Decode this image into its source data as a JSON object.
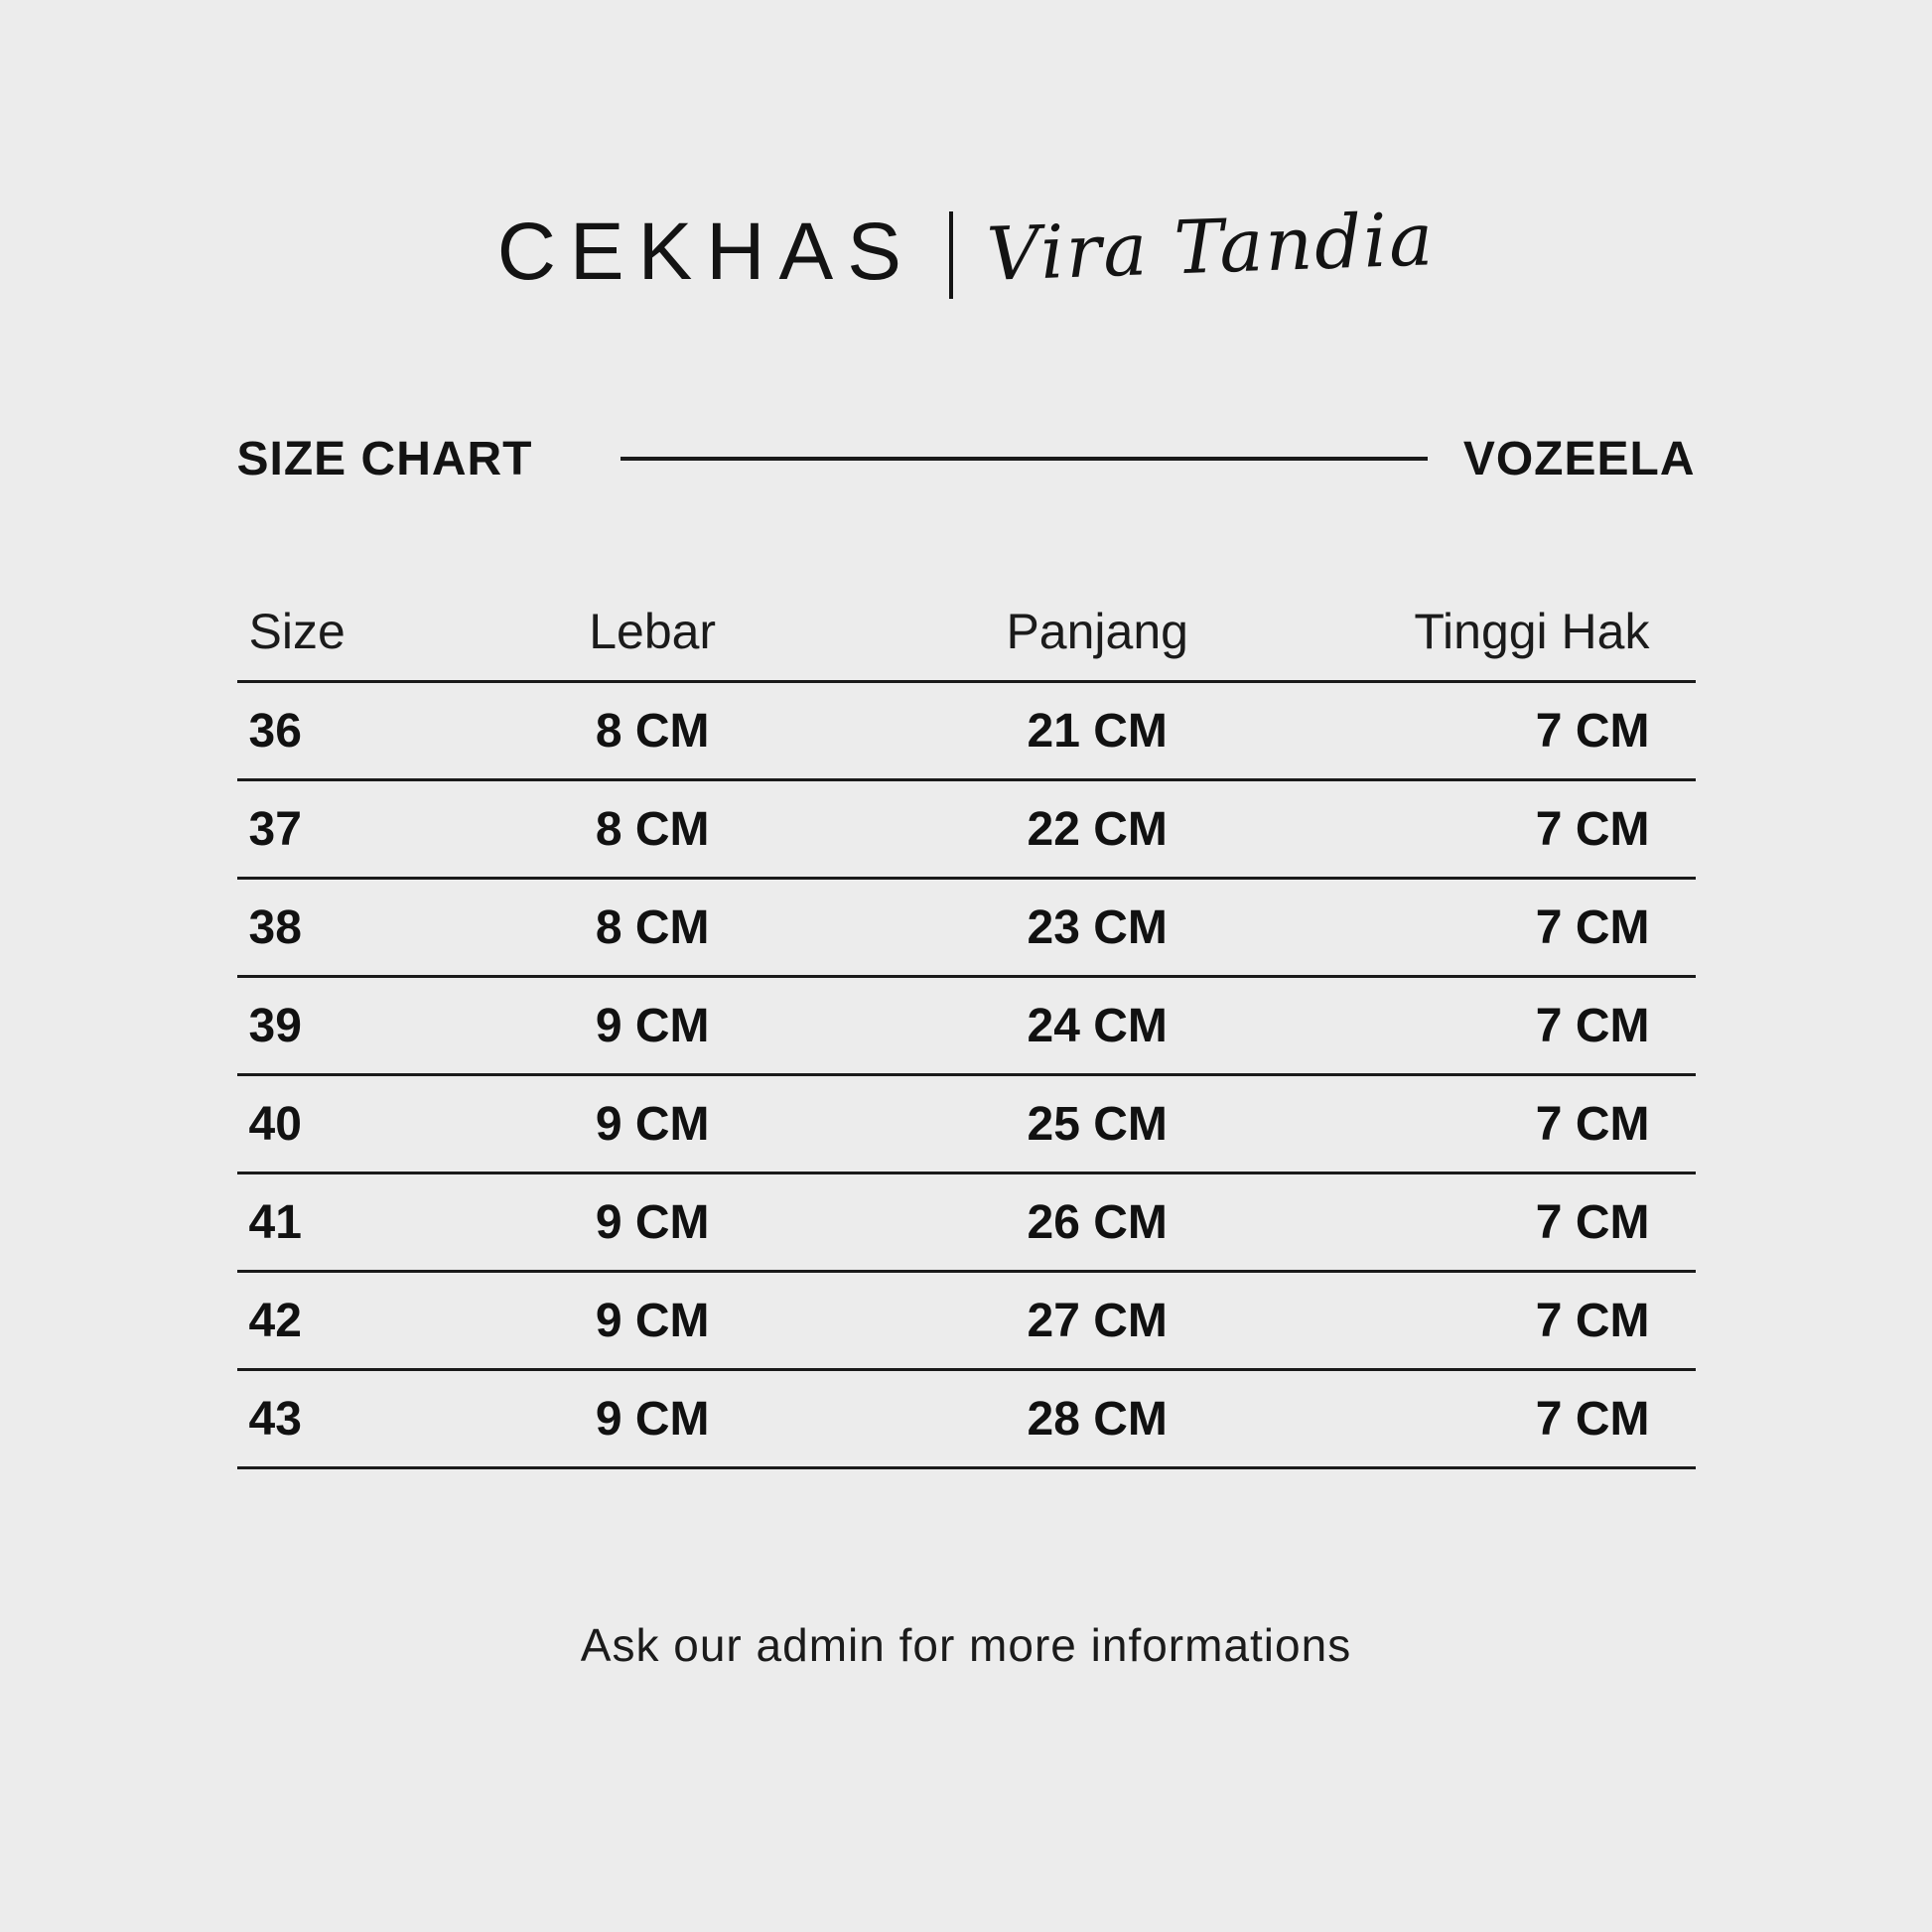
{
  "page": {
    "background_color": "#ececec",
    "text_color": "#161616"
  },
  "brand": {
    "name": "CEKHAS",
    "separator": "|",
    "signature": "Vira Tandia"
  },
  "section": {
    "title": "SIZE CHART",
    "product": "VOZEELA"
  },
  "table": {
    "headers": [
      "Size",
      "Lebar",
      "Panjang",
      "Tinggi Hak"
    ],
    "rows": [
      [
        "36",
        "8 CM",
        "21 CM",
        "7 CM"
      ],
      [
        "37",
        "8 CM",
        "22 CM",
        "7 CM"
      ],
      [
        "38",
        "8 CM",
        "23 CM",
        "7 CM"
      ],
      [
        "39",
        "9 CM",
        "24 CM",
        "7 CM"
      ],
      [
        "40",
        "9 CM",
        "25 CM",
        "7 CM"
      ],
      [
        "41",
        "9 CM",
        "26 CM",
        "7 CM"
      ],
      [
        "42",
        "9 CM",
        "27 CM",
        "7 CM"
      ],
      [
        "43",
        "9 CM",
        "28 CM",
        "7 CM"
      ]
    ]
  },
  "footer": {
    "note": "Ask our admin for more informations"
  }
}
